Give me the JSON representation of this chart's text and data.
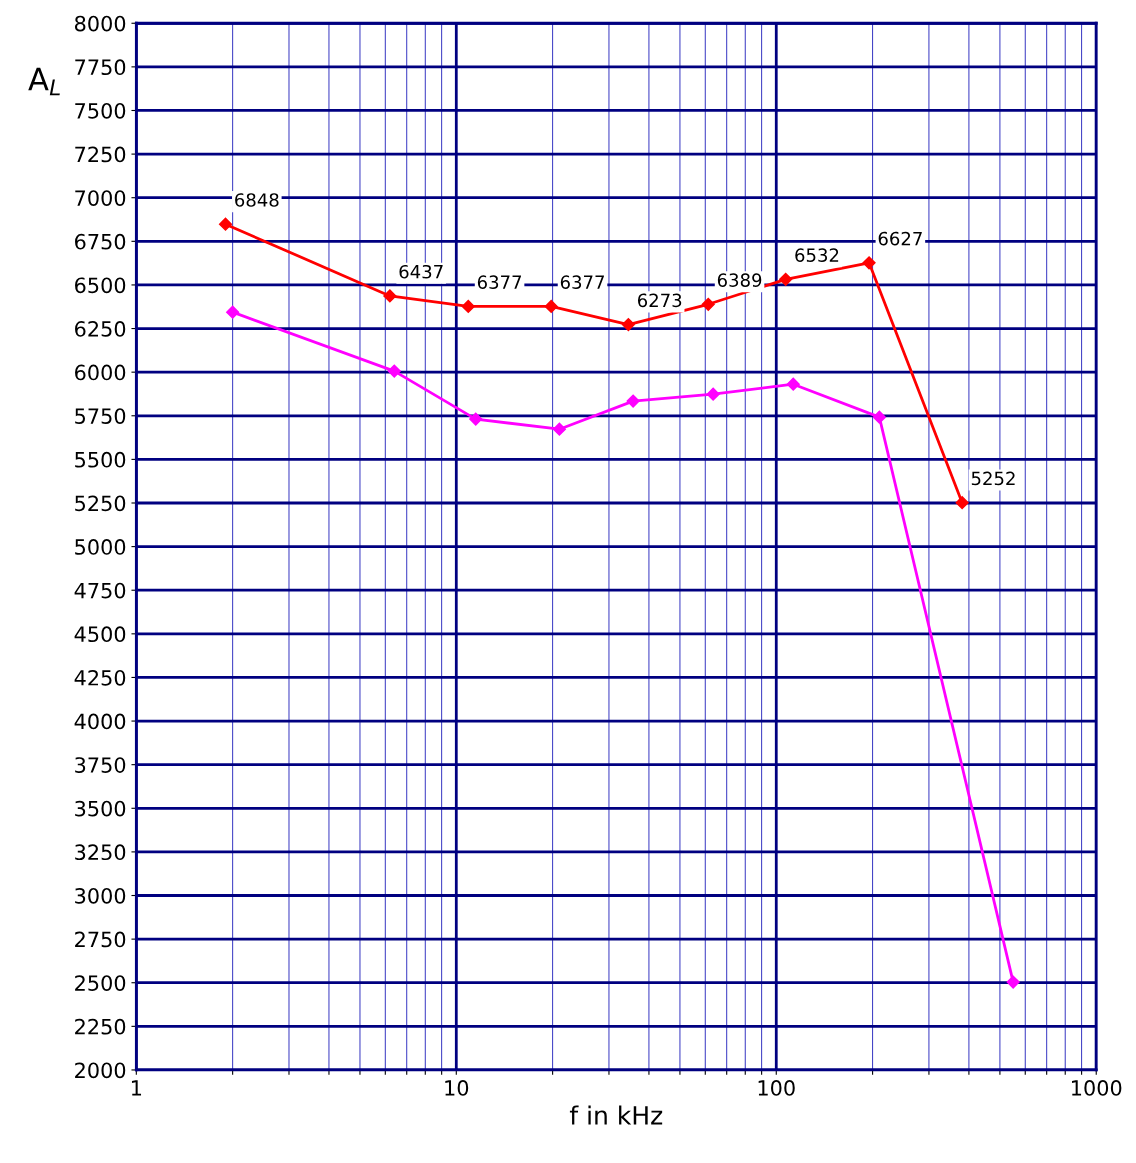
{
  "chart_data": {
    "type": "line",
    "xlabel": "f in kHz",
    "ylabel": "A$_{L}$",
    "log": "x",
    "xlim": [
      1,
      1000
    ],
    "xticks": [
      1,
      {
        "value": 2,
        "label": null
      },
      {
        "value": 3,
        "label": null
      },
      {
        "value": 4,
        "label": null
      },
      {
        "value": 5,
        "label": null
      },
      {
        "value": 6,
        "label": null
      },
      {
        "value": 7,
        "label": null
      },
      {
        "value": 8,
        "label": null
      },
      {
        "value": 9,
        "label": null
      },
      10,
      {
        "value": 20,
        "label": null
      },
      {
        "value": 30,
        "label": null
      },
      {
        "value": 40,
        "label": null
      },
      {
        "value": 50,
        "label": null
      },
      {
        "value": 60,
        "label": null
      },
      {
        "value": 70,
        "label": null
      },
      {
        "value": 80,
        "label": null
      },
      {
        "value": 90,
        "label": null
      },
      100,
      {
        "value": 200,
        "label": null
      },
      {
        "value": 300,
        "label": null
      },
      {
        "value": 400,
        "label": null
      },
      {
        "value": 500,
        "label": null
      },
      {
        "value": 600,
        "label": null
      },
      {
        "value": 700,
        "label": null
      },
      {
        "value": 800,
        "label": null
      },
      {
        "value": 900,
        "label": null
      },
      1000
    ],
    "ylim": [
      2000,
      8000
    ],
    "yticks": [
      2000,
      2250,
      2500,
      2750,
      3000,
      3250,
      3500,
      3750,
      4000,
      4250,
      4500,
      4750,
      5000,
      5250,
      5500,
      5750,
      6000,
      6250,
      6500,
      6750,
      7000,
      7250,
      7500,
      7750,
      8000
    ],
    "grid": true,
    "legend": false,
    "marker": "diamond",
    "line_style": "solid",
    "series": [
      {
        "color": "#ff0000",
        "x": [
          1.9,
          6.2,
          10.9,
          19.8,
          34.5,
          61.3,
          107,
          195,
          381
        ],
        "values": [
          6848,
          6437,
          6377,
          6377,
          6273,
          6389,
          6532,
          6627,
          5252
        ],
        "value_labels": [
          "6848",
          "6437",
          "6377",
          "6377",
          "6273",
          "6389",
          "6532",
          "6627",
          "5252"
        ]
      },
      {
        "color": "#ff00ff",
        "x": [
          2,
          6.4,
          11.5,
          21,
          35.7,
          63.5,
          113,
          210,
          550
        ],
        "values": [
          6344,
          6006,
          5731,
          5673,
          5834,
          5874,
          5931,
          5742,
          2504
        ]
      }
    ]
  }
}
